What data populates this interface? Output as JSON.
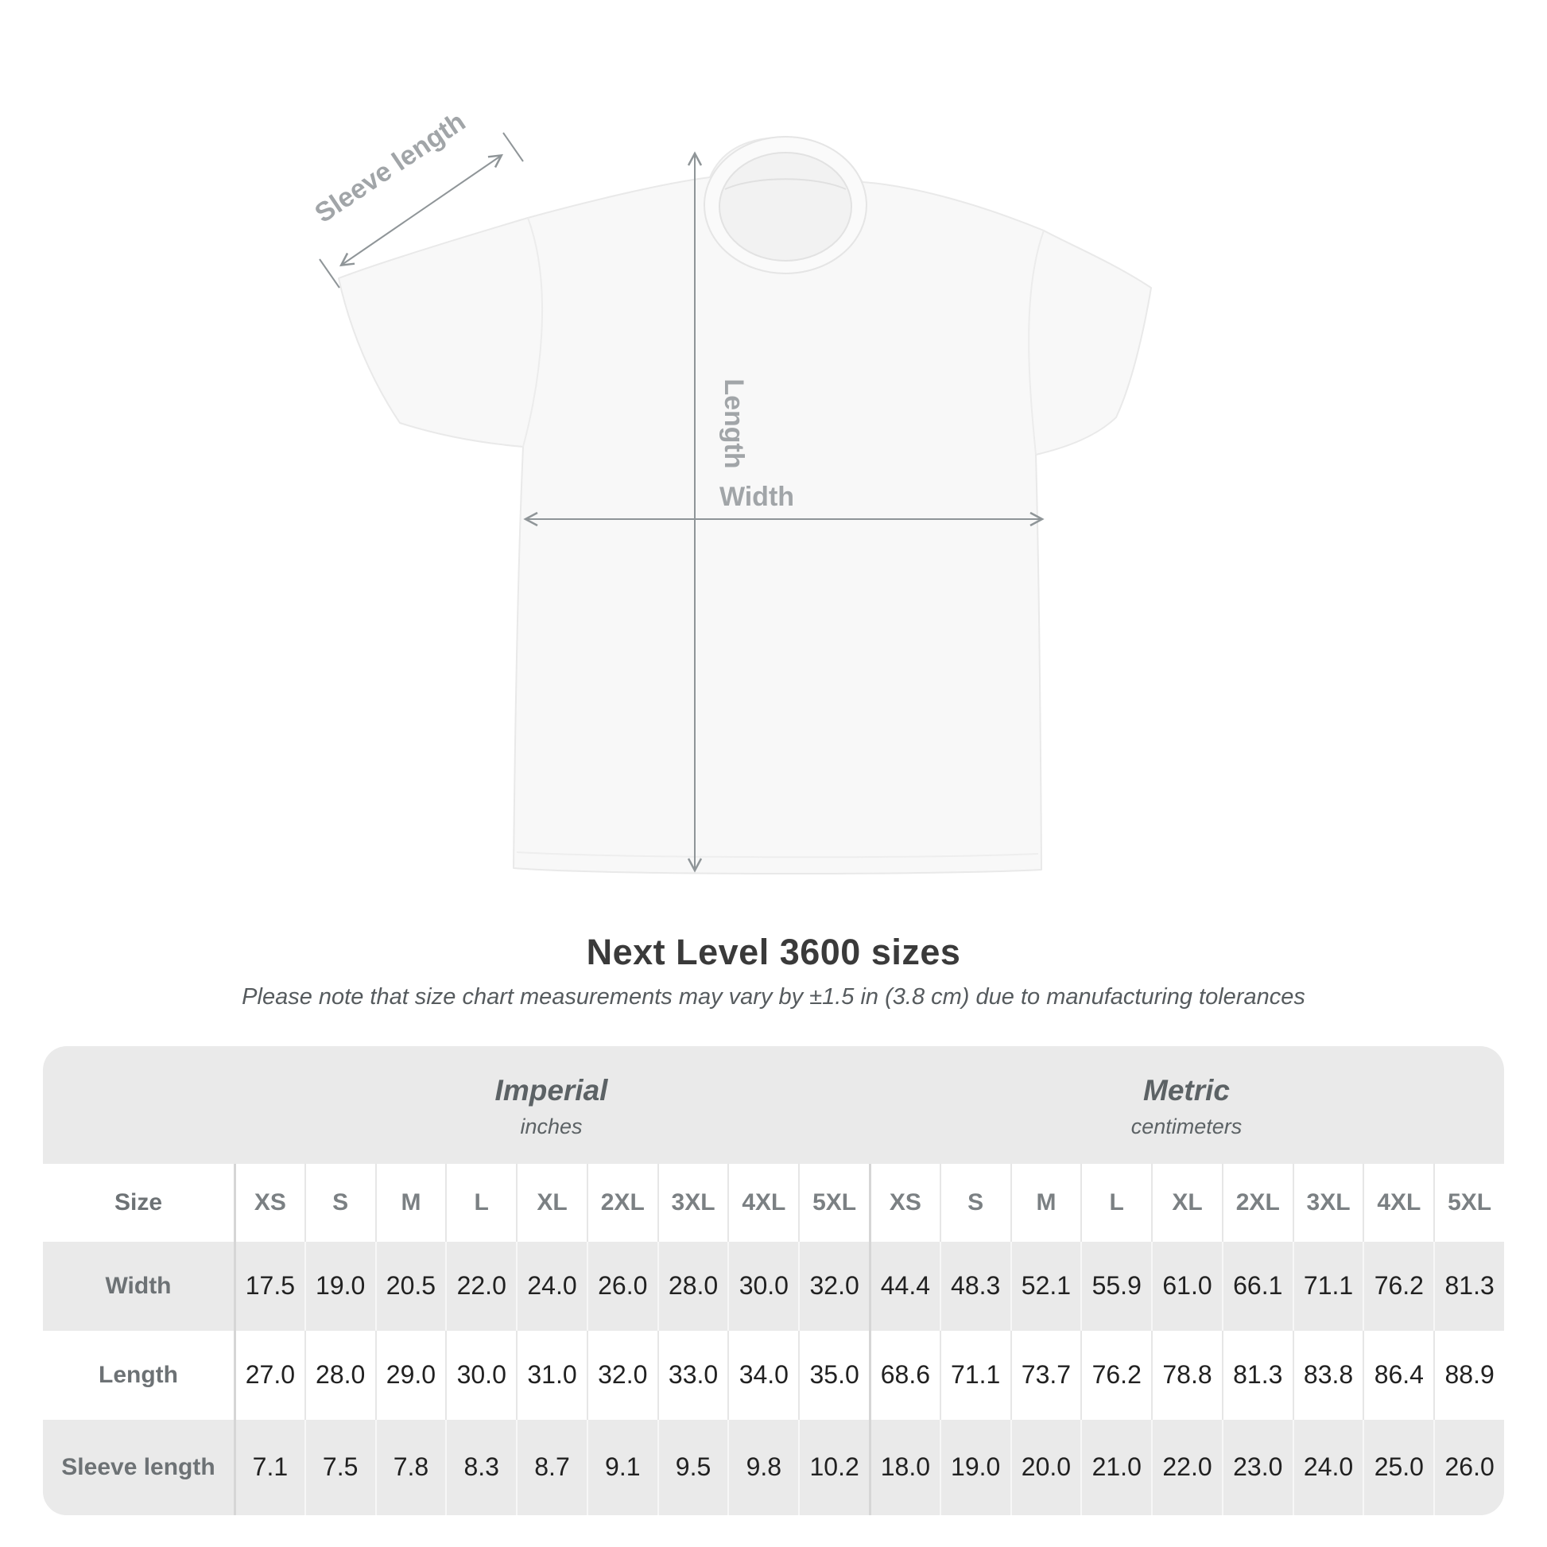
{
  "heading": {
    "title": "Next Level 3600 sizes",
    "subtitle": "Please note that size chart measurements may vary by ±1.5 in (3.8 cm) due to manufacturing tolerances"
  },
  "diagram": {
    "labels": {
      "sleeve_length": "Sleeve length",
      "length": "Length",
      "width": "Width"
    },
    "colors": {
      "annotation_line": "#8f9598",
      "annotation_text": "#a1a5a8",
      "shirt_fill": "#f8f8f8",
      "shirt_outline": "#e9e9e9"
    }
  },
  "size_table": {
    "corner_label": "Size",
    "unit_sections": [
      {
        "name": "Imperial",
        "unit": "inches"
      },
      {
        "name": "Metric",
        "unit": "centimeters"
      }
    ],
    "size_headers": [
      "XS",
      "S",
      "M",
      "L",
      "XL",
      "2XL",
      "3XL",
      "4XL",
      "5XL",
      "XS",
      "S",
      "M",
      "L",
      "XL",
      "2XL",
      "3XL",
      "4XL",
      "5XL"
    ],
    "rows": [
      {
        "key": "width",
        "label": "Width",
        "values": [
          "17.5",
          "19.0",
          "20.5",
          "22.0",
          "24.0",
          "26.0",
          "28.0",
          "30.0",
          "32.0",
          "44.4",
          "48.3",
          "52.1",
          "55.9",
          "61.0",
          "66.1",
          "71.1",
          "76.2",
          "81.3"
        ]
      },
      {
        "key": "length",
        "label": "Length",
        "values": [
          "27.0",
          "28.0",
          "29.0",
          "30.0",
          "31.0",
          "32.0",
          "33.0",
          "34.0",
          "35.0",
          "68.6",
          "71.1",
          "73.7",
          "76.2",
          "78.8",
          "81.3",
          "83.8",
          "86.4",
          "88.9"
        ]
      },
      {
        "key": "sleeve-length",
        "label": "Sleeve length",
        "values": [
          "7.1",
          "7.5",
          "7.8",
          "8.3",
          "8.7",
          "9.1",
          "9.5",
          "9.8",
          "10.2",
          "18.0",
          "19.0",
          "20.0",
          "21.0",
          "22.0",
          "23.0",
          "24.0",
          "25.0",
          "26.0"
        ]
      }
    ],
    "colors": {
      "container_bg": "#eaeaea",
      "white_row_bg": "#ffffff",
      "header_text": "#7b8083",
      "label_text": "#6d7275",
      "value_text": "#212121",
      "section_text": "#5c6265"
    }
  }
}
